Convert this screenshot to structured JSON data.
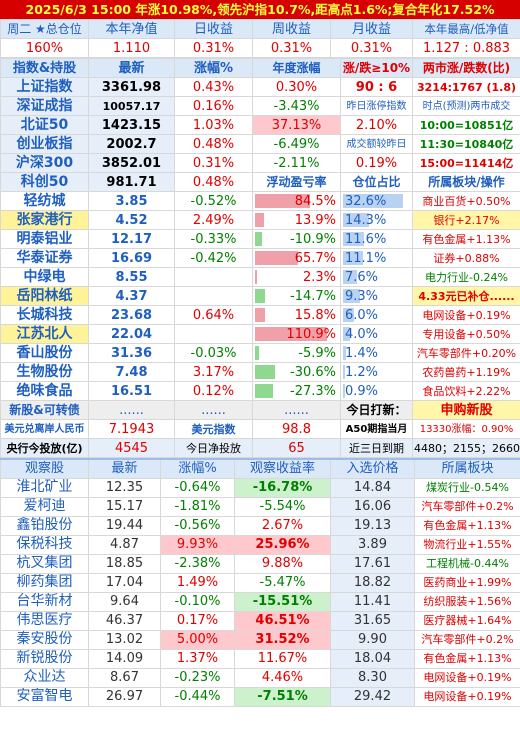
{
  "banner": "2025/6/3  15:00 年涨10.98%,领先沪指10.7%,距高点1.6%;复合年化17.52%",
  "summary": {
    "headers": [
      "周二 ★总仓位",
      "本年净值",
      "日收益",
      "周收益",
      "月收益",
      "本年最高/低净值"
    ],
    "values": [
      "160%",
      "1.110",
      "0.31%",
      "0.31%",
      "0.31%",
      "1.127 : 0.883"
    ]
  },
  "index_header": [
    "指数&持股",
    "最新",
    "涨幅%",
    "年度涨幅",
    "涨/跌≥10%",
    "两市涨/跌数(比)"
  ],
  "indices": [
    {
      "name": "上证指数",
      "price": "3361.98",
      "chg": "0.43%",
      "ytd": "0.30%",
      "c4": "90 : 6",
      "c5": "3214:1767 (1.8)"
    },
    {
      "name": "深证成指",
      "price": "10057.17",
      "chg": "0.16%",
      "ytd": "-3.43%",
      "c4": "昨日涨停指数",
      "c5": "时点(预测)两市成交"
    },
    {
      "name": "北证50",
      "price": "1423.15",
      "chg": "1.03%",
      "ytd": "37.13%",
      "c4": "2.10%",
      "c5": "10:00=10851亿"
    },
    {
      "name": "创业板指",
      "price": "2002.7",
      "chg": "0.48%",
      "ytd": "-6.49%",
      "c4": "成交额较昨日",
      "c5": "11:30=10840亿"
    },
    {
      "name": "沪深300",
      "price": "3852.01",
      "chg": "0.31%",
      "ytd": "-2.11%",
      "c4": "0.19%",
      "c5": "15:00=11414亿"
    }
  ],
  "holding_header": {
    "name": "科创50",
    "price": "981.71",
    "chg": "0.48%",
    "ytd": "浮动盈亏率",
    "c4": "仓位占比",
    "c5": "所属板块/操作"
  },
  "holdings": [
    {
      "name": "轻纺城",
      "price": "3.85",
      "chg": "-0.52%",
      "pnl": "84.5%",
      "pnl_value": 84.5,
      "pos": "32.6%",
      "pos_value": 32.6,
      "sector": "商业百货+0.50%"
    },
    {
      "name": "张家港行",
      "price": "4.52",
      "chg": "2.49%",
      "pnl": "13.9%",
      "pnl_value": 13.9,
      "pos": "14.3%",
      "pos_value": 14.3,
      "sector": "银行+2.17%"
    },
    {
      "name": "明泰铝业",
      "price": "12.17",
      "chg": "-0.33%",
      "pnl": "-10.9%",
      "pnl_value": -10.9,
      "pos": "11.6%",
      "pos_value": 11.6,
      "sector": "有色金属+1.13%"
    },
    {
      "name": "华泰证券",
      "price": "16.69",
      "chg": "-0.42%",
      "pnl": "65.7%",
      "pnl_value": 65.7,
      "pos": "11.1%",
      "pos_value": 11.1,
      "sector": "证券+0.88%"
    },
    {
      "name": "中绿电",
      "price": "8.55",
      "chg": "",
      "pnl": "2.3%",
      "pnl_value": 2.3,
      "pos": "7.6%",
      "pos_value": 7.6,
      "sector": "电力行业-0.24%"
    },
    {
      "name": "岳阳林纸",
      "price": "4.37",
      "chg": "",
      "pnl": "-14.7%",
      "pnl_value": -14.7,
      "pos": "9.3%",
      "pos_value": 9.3,
      "sector": "4.33元已补仓......"
    },
    {
      "name": "长城科技",
      "price": "23.68",
      "chg": "0.64%",
      "pnl": "15.8%",
      "pnl_value": 15.8,
      "pos": "6.0%",
      "pos_value": 6.0,
      "sector": "电网设备+0.19%"
    },
    {
      "name": "江苏北人",
      "price": "22.04",
      "chg": "",
      "pnl": "110.9%",
      "pnl_value": 110.9,
      "pos": "4.0%",
      "pos_value": 4.0,
      "sector": "专用设备+0.50%"
    },
    {
      "name": "香山股份",
      "price": "31.36",
      "chg": "-0.03%",
      "pnl": "-5.9%",
      "pnl_value": -5.9,
      "pos": "1.4%",
      "pos_value": 1.4,
      "sector": "汽车零部件+0.20%"
    },
    {
      "name": "生物股份",
      "price": "7.48",
      "chg": "3.17%",
      "pnl": "-30.6%",
      "pnl_value": -30.6,
      "pos": "1.2%",
      "pos_value": 1.2,
      "sector": "农药兽药+1.19%"
    },
    {
      "name": "绝味食品",
      "price": "16.51",
      "chg": "0.12%",
      "pnl": "-27.3%",
      "pnl_value": -27.3,
      "pos": "0.9%",
      "pos_value": 0.9,
      "sector": "食品饮料+2.22%"
    }
  ],
  "ipo_row": {
    "name": "新股&可转债",
    "c1": "......",
    "c2": "......",
    "c3": "......",
    "c4": "今日打新：",
    "c5": "申购新股"
  },
  "fx_row": {
    "c0": "美元兑离岸人民币",
    "c1": "7.1943",
    "c2": "美元指数",
    "c3": "98.8",
    "c4": "A50期指当月",
    "c5": "13330涨幅：0.90%"
  },
  "cb_row": {
    "c0": "央行今投放(亿)",
    "c1": "4545",
    "c2": "今日净投放",
    "c3": "65",
    "c4": "近三日到期",
    "c5": "4480；2155；2660"
  },
  "watch_header": [
    "观察股",
    "最新",
    "涨幅%",
    "观察收益率",
    "入选价格",
    "所属板块"
  ],
  "watch": [
    {
      "name": "淮北矿业",
      "price": "12.35",
      "chg": "-0.64%",
      "ret": "-16.78%",
      "entry": "14.84",
      "sector": "煤炭行业-0.54%"
    },
    {
      "name": "爱柯迪",
      "price": "15.17",
      "chg": "-1.81%",
      "ret": "-5.54%",
      "entry": "16.06",
      "sector": "汽车零部件+0.2%"
    },
    {
      "name": "鑫铂股份",
      "price": "19.44",
      "chg": "-0.56%",
      "ret": "2.67%",
      "entry": "19.13",
      "sector": "有色金属+1.13%"
    },
    {
      "name": "保税科技",
      "price": "4.87",
      "chg": "9.93%",
      "ret": "25.96%",
      "entry": "3.89",
      "sector": "物流行业+1.55%"
    },
    {
      "name": "杭叉集团",
      "price": "18.85",
      "chg": "-2.38%",
      "ret": "9.88%",
      "entry": "17.61",
      "sector": "工程机械-0.44%"
    },
    {
      "name": "柳药集团",
      "price": "17.04",
      "chg": "1.49%",
      "ret": "-5.47%",
      "entry": "18.82",
      "sector": "医药商业+1.99%"
    },
    {
      "name": "台华新材",
      "price": "9.64",
      "chg": "-0.10%",
      "ret": "-15.51%",
      "entry": "11.41",
      "sector": "纺织服装+1.56%"
    },
    {
      "name": "伟思医疗",
      "price": "46.37",
      "chg": "0.17%",
      "ret": "46.51%",
      "entry": "31.65",
      "sector": "医疗器械+1.64%"
    },
    {
      "name": "秦安股份",
      "price": "13.02",
      "chg": "5.00%",
      "ret": "31.52%",
      "entry": "9.90",
      "sector": "汽车零部件+0.2%"
    },
    {
      "name": "新锐股份",
      "price": "14.09",
      "chg": "1.37%",
      "ret": "11.67%",
      "entry": "18.04",
      "sector": "有色金属+1.13%"
    },
    {
      "name": "众业达",
      "price": "8.67",
      "chg": "-0.23%",
      "ret": "4.46%",
      "entry": "8.30",
      "sector": "电网设备+0.19%"
    },
    {
      "name": "安富智电",
      "price": "26.97",
      "chg": "-0.44%",
      "ret": "-7.51%",
      "entry": "29.42",
      "sector": "电网设备+0.19%"
    }
  ]
}
